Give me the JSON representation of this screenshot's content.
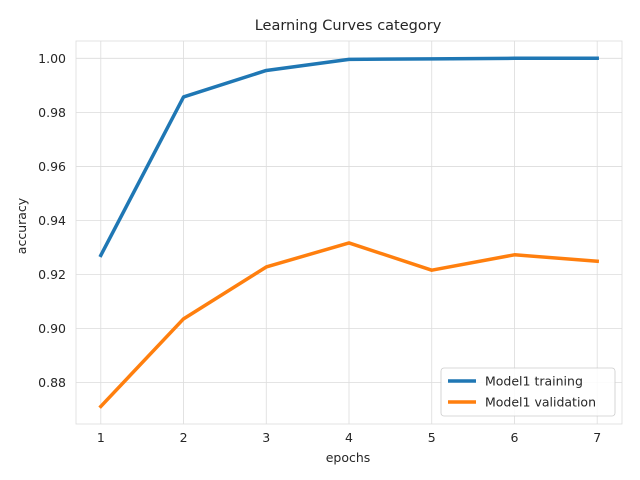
{
  "chart_data": {
    "type": "line",
    "title": "Learning Curves category",
    "xlabel": "epochs",
    "ylabel": "accuracy",
    "x": [
      1,
      2,
      3,
      4,
      5,
      6,
      7
    ],
    "xlim": [
      0.7,
      7.3
    ],
    "ylim": [
      0.8647,
      1.0064
    ],
    "xticks": [
      "1",
      "2",
      "3",
      "4",
      "5",
      "6",
      "7"
    ],
    "yticks": [
      "0.88",
      "0.90",
      "0.92",
      "0.94",
      "0.96",
      "0.98",
      "1.00"
    ],
    "grid": true,
    "legend_position": "lower-right",
    "series": [
      {
        "name": "Model1 training",
        "color": "#1f77b4",
        "values": [
          0.9271,
          0.9857,
          0.9955,
          0.9996,
          0.9998,
          1.0,
          1.0
        ]
      },
      {
        "name": "Model1 validation",
        "color": "#ff7f0e",
        "values": [
          0.8712,
          0.9036,
          0.9228,
          0.9317,
          0.9216,
          0.9273,
          0.9249
        ]
      }
    ]
  }
}
